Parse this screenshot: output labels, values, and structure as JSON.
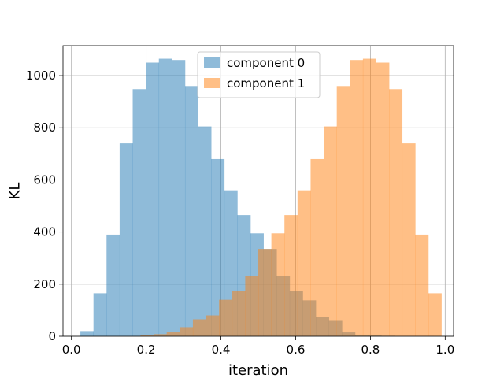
{
  "chart_data": {
    "type": "histogram",
    "xlabel": "iteration",
    "ylabel": "KL",
    "xlim": [
      -0.0,
      1.02
    ],
    "ylim": [
      0,
      1115
    ],
    "xticks": [
      0.0,
      0.2,
      0.4,
      0.6,
      0.8,
      1.0
    ],
    "xtick_labels": [
      "0.0",
      "0.2",
      "0.4",
      "0.6",
      "0.8",
      "1.0"
    ],
    "yticks": [
      0,
      200,
      400,
      600,
      800,
      1000
    ],
    "ytick_labels": [
      "0",
      "200",
      "400",
      "600",
      "800",
      "1000"
    ],
    "grid": true,
    "legend_position": "upper center",
    "series": [
      {
        "name": "component 0",
        "color": "#1f77b4",
        "alpha": 0.5,
        "bins": [
          {
            "x0": 0.024,
            "x1": 0.059,
            "value": 20
          },
          {
            "x0": 0.059,
            "x1": 0.094,
            "value": 165
          },
          {
            "x0": 0.094,
            "x1": 0.129,
            "value": 390
          },
          {
            "x0": 0.129,
            "x1": 0.164,
            "value": 740
          },
          {
            "x0": 0.164,
            "x1": 0.199,
            "value": 948
          },
          {
            "x0": 0.199,
            "x1": 0.234,
            "value": 1050
          },
          {
            "x0": 0.234,
            "x1": 0.269,
            "value": 1065
          },
          {
            "x0": 0.269,
            "x1": 0.304,
            "value": 1060
          },
          {
            "x0": 0.304,
            "x1": 0.339,
            "value": 960
          },
          {
            "x0": 0.339,
            "x1": 0.374,
            "value": 805
          },
          {
            "x0": 0.374,
            "x1": 0.409,
            "value": 680
          },
          {
            "x0": 0.409,
            "x1": 0.444,
            "value": 560
          },
          {
            "x0": 0.444,
            "x1": 0.479,
            "value": 465
          },
          {
            "x0": 0.479,
            "x1": 0.514,
            "value": 395
          },
          {
            "x0": 0.514,
            "x1": 0.549,
            "value": 335
          },
          {
            "x0": 0.549,
            "x1": 0.584,
            "value": 230
          },
          {
            "x0": 0.584,
            "x1": 0.619,
            "value": 175
          },
          {
            "x0": 0.619,
            "x1": 0.654,
            "value": 138
          },
          {
            "x0": 0.654,
            "x1": 0.689,
            "value": 75
          },
          {
            "x0": 0.689,
            "x1": 0.724,
            "value": 62
          },
          {
            "x0": 0.724,
            "x1": 0.759,
            "value": 15
          },
          {
            "x0": 0.759,
            "x1": 0.794,
            "value": 3
          },
          {
            "x0": 0.794,
            "x1": 0.829,
            "value": 3
          },
          {
            "x0": 0.829,
            "x1": 0.864,
            "value": 2
          },
          {
            "x0": 0.864,
            "x1": 0.899,
            "value": 1
          },
          {
            "x0": 0.899,
            "x1": 0.934,
            "value": 1
          },
          {
            "x0": 0.934,
            "x1": 0.969,
            "value": 1
          }
        ]
      },
      {
        "name": "component 1",
        "color": "#ff7f0e",
        "alpha": 0.5,
        "bins": [
          {
            "x0": 0.185,
            "x1": 0.22,
            "value": 5
          },
          {
            "x0": 0.22,
            "x1": 0.255,
            "value": 8
          },
          {
            "x0": 0.255,
            "x1": 0.29,
            "value": 15
          },
          {
            "x0": 0.29,
            "x1": 0.325,
            "value": 35
          },
          {
            "x0": 0.325,
            "x1": 0.36,
            "value": 65
          },
          {
            "x0": 0.36,
            "x1": 0.395,
            "value": 80
          },
          {
            "x0": 0.395,
            "x1": 0.43,
            "value": 140
          },
          {
            "x0": 0.43,
            "x1": 0.465,
            "value": 175
          },
          {
            "x0": 0.465,
            "x1": 0.5,
            "value": 230
          },
          {
            "x0": 0.5,
            "x1": 0.535,
            "value": 335
          },
          {
            "x0": 0.535,
            "x1": 0.57,
            "value": 395
          },
          {
            "x0": 0.57,
            "x1": 0.605,
            "value": 465
          },
          {
            "x0": 0.605,
            "x1": 0.64,
            "value": 560
          },
          {
            "x0": 0.64,
            "x1": 0.675,
            "value": 680
          },
          {
            "x0": 0.675,
            "x1": 0.71,
            "value": 805
          },
          {
            "x0": 0.71,
            "x1": 0.745,
            "value": 960
          },
          {
            "x0": 0.745,
            "x1": 0.78,
            "value": 1060
          },
          {
            "x0": 0.78,
            "x1": 0.815,
            "value": 1065
          },
          {
            "x0": 0.815,
            "x1": 0.85,
            "value": 1050
          },
          {
            "x0": 0.85,
            "x1": 0.885,
            "value": 948
          },
          {
            "x0": 0.885,
            "x1": 0.92,
            "value": 740
          },
          {
            "x0": 0.92,
            "x1": 0.955,
            "value": 390
          },
          {
            "x0": 0.955,
            "x1": 0.99,
            "value": 165
          }
        ]
      }
    ]
  }
}
